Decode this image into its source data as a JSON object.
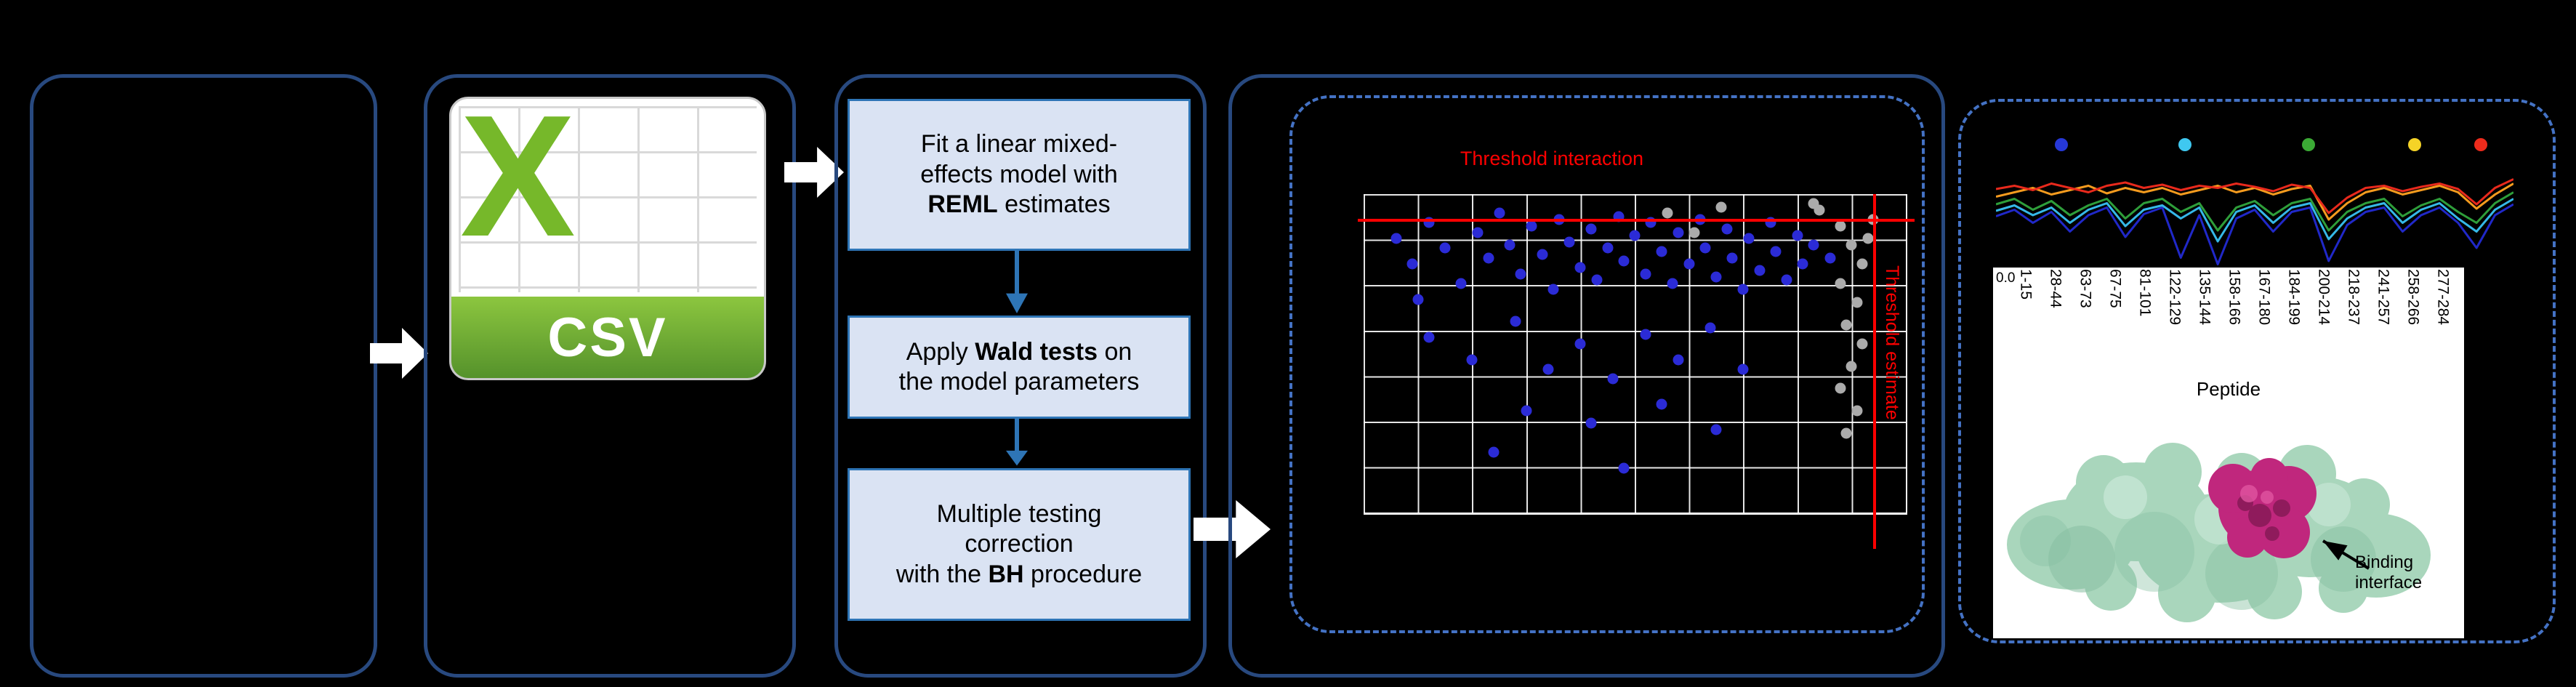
{
  "figure": {
    "background": "#000000"
  },
  "csv_card": {
    "logo_letter": "X",
    "format_label": "CSV"
  },
  "steps": {
    "step1": {
      "pre": "Fit a linear mixed-\neffects model with\n",
      "bold": "REML",
      "post": " estimates"
    },
    "step2": {
      "pre": "Apply ",
      "bold": "Wald tests",
      "post": " on\nthe model parameters"
    },
    "step3": {
      "pre": "Multiple testing\ncorrection\nwith the ",
      "bold": "BH",
      "post": " procedure"
    }
  },
  "scatter": {
    "threshold_top_label": "Threshold interaction",
    "threshold_right_label": "Threshold estimate",
    "threshold_color": "#FF0000",
    "point_colors": {
      "blue": "#2B2BD6",
      "gray": "#ABABAB"
    },
    "blue_dots": [
      [
        6,
        14
      ],
      [
        9,
        22
      ],
      [
        12,
        9
      ],
      [
        15,
        17
      ],
      [
        18,
        28
      ],
      [
        21,
        12
      ],
      [
        23,
        20
      ],
      [
        25,
        6
      ],
      [
        27,
        16
      ],
      [
        29,
        25
      ],
      [
        31,
        10
      ],
      [
        33,
        19
      ],
      [
        35,
        30
      ],
      [
        36,
        8
      ],
      [
        38,
        15
      ],
      [
        40,
        23
      ],
      [
        42,
        11
      ],
      [
        43,
        27
      ],
      [
        45,
        17
      ],
      [
        47,
        7
      ],
      [
        48,
        21
      ],
      [
        50,
        13
      ],
      [
        52,
        25
      ],
      [
        53,
        9
      ],
      [
        55,
        18
      ],
      [
        57,
        28
      ],
      [
        58,
        12
      ],
      [
        60,
        22
      ],
      [
        62,
        8
      ],
      [
        63,
        17
      ],
      [
        65,
        26
      ],
      [
        67,
        11
      ],
      [
        68,
        20
      ],
      [
        70,
        30
      ],
      [
        71,
        14
      ],
      [
        73,
        24
      ],
      [
        75,
        9
      ],
      [
        76,
        18
      ],
      [
        78,
        27
      ],
      [
        80,
        13
      ],
      [
        81,
        22
      ],
      [
        83,
        16
      ],
      [
        12,
        45
      ],
      [
        20,
        52
      ],
      [
        28,
        40
      ],
      [
        34,
        55
      ],
      [
        40,
        47
      ],
      [
        46,
        58
      ],
      [
        52,
        44
      ],
      [
        58,
        52
      ],
      [
        64,
        42
      ],
      [
        70,
        55
      ],
      [
        30,
        68
      ],
      [
        42,
        72
      ],
      [
        55,
        66
      ],
      [
        65,
        74
      ],
      [
        24,
        81
      ],
      [
        48,
        86
      ],
      [
        10,
        33
      ],
      [
        86,
        20
      ]
    ],
    "gray_dots": [
      [
        84,
        5
      ],
      [
        88,
        10
      ],
      [
        90,
        16
      ],
      [
        92,
        22
      ],
      [
        88,
        28
      ],
      [
        91,
        34
      ],
      [
        89,
        41
      ],
      [
        92,
        47
      ],
      [
        90,
        54
      ],
      [
        88,
        61
      ],
      [
        91,
        68
      ],
      [
        89,
        75
      ],
      [
        94,
        8
      ],
      [
        56,
        6
      ],
      [
        61,
        12
      ],
      [
        66,
        4
      ],
      [
        83,
        3
      ],
      [
        93,
        14
      ]
    ]
  },
  "profile_chart": {
    "legend": [
      {
        "name": "blue",
        "color": "#2638D8",
        "x": 12.6
      },
      {
        "name": "cyan",
        "color": "#3FC8F0",
        "x": 36.5
      },
      {
        "name": "green",
        "color": "#3BAA35",
        "x": 60.4
      },
      {
        "name": "yellow",
        "color": "#F5D327",
        "x": 80.9
      },
      {
        "name": "red",
        "color": "#EE2B1C",
        "x": 93.7
      }
    ],
    "series": [
      {
        "name": "blue",
        "color": "#2028C8",
        "y": [
          55,
          49,
          61,
          51,
          69,
          54,
          47,
          74,
          53,
          47,
          93,
          54,
          99,
          57,
          49,
          69,
          51,
          47,
          96,
          63,
          51,
          47,
          69,
          54,
          47,
          61,
          84,
          54,
          44
        ]
      },
      {
        "name": "cyan",
        "color": "#35B8E8",
        "y": [
          50,
          45,
          54,
          47,
          61,
          49,
          43,
          64,
          49,
          45,
          57,
          47,
          78,
          51,
          45,
          61,
          47,
          43,
          76,
          57,
          47,
          43,
          61,
          49,
          43,
          57,
          69,
          49,
          39
        ]
      },
      {
        "name": "green",
        "color": "#2E9E3A",
        "y": [
          44,
          39,
          49,
          41,
          54,
          45,
          39,
          57,
          43,
          39,
          51,
          43,
          68,
          47,
          41,
          54,
          43,
          39,
          68,
          51,
          43,
          39,
          55,
          45,
          39,
          51,
          61,
          43,
          33
        ]
      },
      {
        "name": "orange",
        "color": "#F59B1E",
        "y": [
          37,
          33,
          29,
          35,
          31,
          27,
          34,
          29,
          33,
          29,
          35,
          31,
          27,
          33,
          29,
          35,
          30,
          27,
          58,
          43,
          33,
          29,
          35,
          31,
          27,
          33,
          48,
          35,
          25
        ]
      },
      {
        "name": "red",
        "color": "#E8291C",
        "y": [
          30,
          27,
          31,
          25,
          29,
          33,
          27,
          24,
          29,
          26,
          31,
          27,
          29,
          25,
          28,
          32,
          26,
          29,
          52,
          38,
          29,
          27,
          32,
          28,
          25,
          30,
          44,
          29,
          21
        ]
      }
    ]
  },
  "peptide_axis": {
    "tick_label": "0.0",
    "labels": [
      "1-15",
      "28-44",
      "63-73",
      "67-75",
      "81-101",
      "122-129",
      "135-144",
      "158-166",
      "167-180",
      "184-199",
      "200-214",
      "218-237",
      "241-257",
      "258-266",
      "277-284"
    ],
    "axis_title": "Peptide"
  },
  "structure": {
    "annotation": "Binding\ninterface"
  }
}
